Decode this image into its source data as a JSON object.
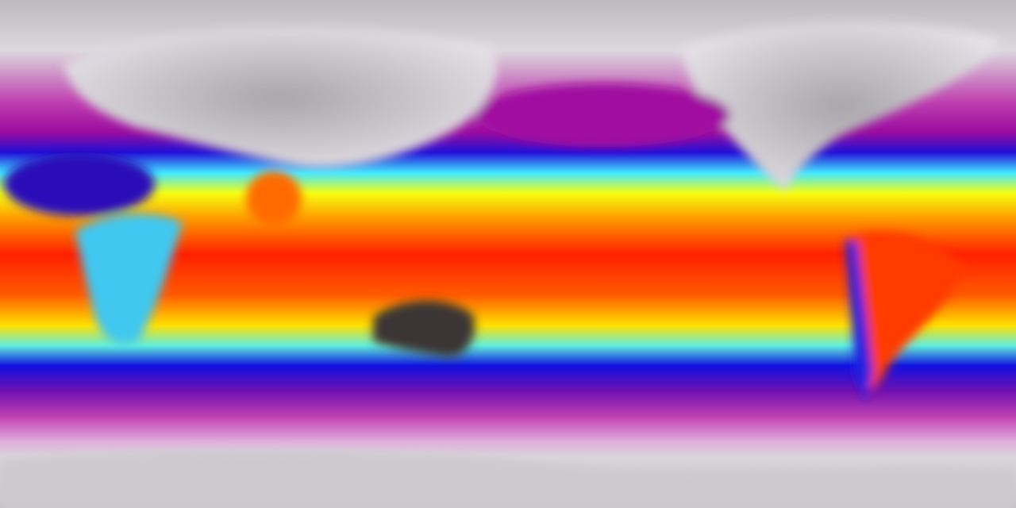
{
  "map": {
    "projection": "equirectangular",
    "colors": {
      "polar": "#d9d6da",
      "polar_dark": "#a9a6aa",
      "magenta": "#b0109a",
      "purple": "#5a10b0",
      "blue": "#1010d8",
      "cyan": "#40e8ff",
      "yellow": "#ffff00",
      "orange": "#ff9000",
      "red": "#ff1800",
      "dark_land": "#3a3636"
    }
  }
}
